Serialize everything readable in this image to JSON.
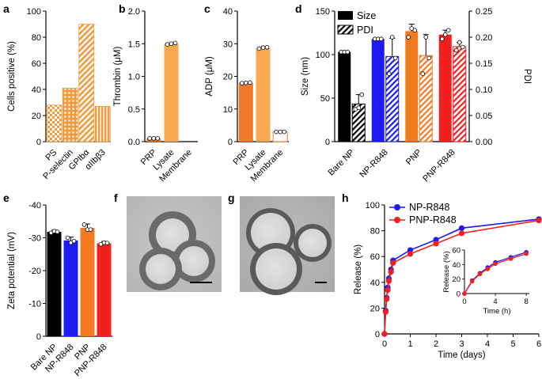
{
  "chart_data": [
    {
      "panel": "a",
      "type": "bar",
      "ylabel": "Cells positive (%)",
      "ylim": [
        0,
        100
      ],
      "yticks": [
        0,
        20,
        40,
        60,
        80,
        100
      ],
      "categories": [
        "PS",
        "P-selectin",
        "GPIbα",
        "αIIbβ3"
      ],
      "values": [
        28,
        41,
        90,
        27
      ],
      "patterns": [
        "checker",
        "dots",
        "hatch",
        "vlines"
      ],
      "color": "#f39a3c"
    },
    {
      "panel": "b",
      "type": "bar",
      "ylabel": "Thrombin (μM)",
      "ylim": [
        0,
        2.0
      ],
      "yticks": [
        0.0,
        0.5,
        1.0,
        1.5,
        2.0
      ],
      "categories": [
        "PRP",
        "Lysate",
        "Membrane"
      ],
      "values": [
        0.05,
        1.5,
        0.0
      ],
      "points": [
        [
          0.05,
          0.05,
          0.05
        ],
        [
          1.49,
          1.5,
          1.51
        ],
        [
          0.0,
          0.0,
          0.0
        ]
      ],
      "colors": [
        "#f07a2a",
        "#f8aa52",
        "#f8aa52"
      ]
    },
    {
      "panel": "c",
      "type": "bar",
      "ylabel": "ADP (μM)",
      "ylim": [
        0,
        40
      ],
      "yticks": [
        0,
        10,
        20,
        30,
        40
      ],
      "categories": [
        "PRP",
        "Lysate",
        "Membrane"
      ],
      "values": [
        18,
        28.7,
        3
      ],
      "points": [
        [
          17.9,
          18,
          18.1
        ],
        [
          28.5,
          28.8,
          28.9
        ],
        [
          3,
          3,
          3
        ]
      ],
      "colors": [
        "#f07a2a",
        "#f8aa52",
        "#ffffff"
      ]
    },
    {
      "panel": "d",
      "type": "bar",
      "ylabel": "Size (nm)",
      "ylabel_right": "PDI",
      "ylim": [
        0,
        150
      ],
      "yticks": [
        0,
        50,
        100,
        150
      ],
      "ylim_right": [
        0,
        0.25
      ],
      "yticks_right": [
        0.0,
        0.05,
        0.1,
        0.15,
        0.2,
        0.25
      ],
      "categories": [
        "Bare NP",
        "NP-R848",
        "PNP",
        "PNP-R848"
      ],
      "legend": [
        "Size",
        "PDI"
      ],
      "legend_position": "top-left",
      "series": [
        {
          "name": "Size",
          "values": [
            103,
            118,
            127,
            123
          ],
          "errors": [
            1,
            1,
            8,
            5
          ],
          "points": [
            [
              103,
              103,
              103
            ],
            [
              118,
              118,
              118
            ],
            [
              120,
              130,
              128
            ],
            [
              118,
              123,
              128
            ]
          ]
        },
        {
          "name": "PDI",
          "values": [
            0.072,
            0.163,
            0.165,
            0.182
          ],
          "errors": [
            0.018,
            0.035,
            0.04,
            0.008
          ],
          "points": [
            [
              0.062,
              0.065,
              0.09
            ],
            [
              0.13,
              0.2,
              0.16
            ],
            [
              0.13,
              0.2,
              0.16
            ],
            [
              0.175,
              0.19,
              0.181
            ]
          ]
        }
      ],
      "colors": [
        "#000000",
        "#1b1bf2",
        "#f47a20",
        "#f21f1f"
      ]
    },
    {
      "panel": "e",
      "type": "bar",
      "ylabel": "Zeta potential (mV)",
      "ylim": [
        0,
        -40
      ],
      "yticks": [
        0,
        -10,
        -20,
        -30,
        -40
      ],
      "categories": [
        "Bare NP",
        "NP-R848",
        "PNP",
        "PNP-R848"
      ],
      "values": [
        -31.8,
        -29.2,
        -33,
        -28.3
      ],
      "errors": [
        0.5,
        1,
        1.2,
        0.6
      ],
      "points": [
        [
          -31.5,
          -32,
          -31.8
        ],
        [
          -30,
          -28.5,
          -29
        ],
        [
          -34,
          -32.5,
          -32.5
        ],
        [
          -28,
          -28.5,
          -28.4
        ]
      ],
      "colors": [
        "#000000",
        "#1b1bf2",
        "#f47a20",
        "#f21f1f"
      ]
    },
    {
      "panel": "h",
      "type": "line",
      "xlabel": "Time (days)",
      "ylabel": "Release (%)",
      "xlim": [
        0,
        6
      ],
      "ylim": [
        0,
        100
      ],
      "xticks": [
        0,
        1,
        2,
        3,
        4,
        5,
        6
      ],
      "yticks": [
        0,
        20,
        40,
        60,
        80,
        100
      ],
      "legend": [
        "NP-R848",
        "PNP-R848"
      ],
      "legend_position": "top-left",
      "series": [
        {
          "name": "NP-R848",
          "color": "#1b1bf2",
          "x": [
            0,
            0.042,
            0.083,
            0.125,
            0.167,
            0.25,
            0.33,
            1,
            2,
            3,
            6
          ],
          "y": [
            0,
            18,
            28,
            36,
            43,
            50,
            57,
            65,
            73,
            82,
            89
          ]
        },
        {
          "name": "PNP-R848",
          "color": "#f21f1f",
          "x": [
            0,
            0.042,
            0.083,
            0.125,
            0.167,
            0.25,
            0.33,
            1,
            2,
            3,
            6
          ],
          "y": [
            0,
            17,
            27,
            34,
            41,
            48,
            55,
            62,
            70,
            78,
            88
          ]
        }
      ],
      "inset": {
        "xlabel": "Time (h)",
        "ylabel": "Release (%)",
        "xlim": [
          0,
          8.4
        ],
        "ylim": [
          0,
          60
        ],
        "xticks": [
          0,
          4,
          8
        ],
        "yticks": [
          0,
          20,
          40,
          60
        ],
        "series": [
          {
            "name": "NP-R848",
            "x": [
              0,
              1,
              2,
              3,
              4,
              6,
              8
            ],
            "y": [
              0,
              18,
              28,
              36,
              43,
              50,
              57
            ]
          },
          {
            "name": "PNP-R848",
            "x": [
              0,
              1,
              2,
              3,
              4,
              6,
              8
            ],
            "y": [
              0,
              17,
              27,
              34,
              41,
              48,
              55
            ]
          }
        ]
      }
    }
  ],
  "panels": {
    "f": {
      "label": "f",
      "kind": "TEM micrograph"
    },
    "g": {
      "label": "g",
      "kind": "TEM micrograph"
    }
  }
}
